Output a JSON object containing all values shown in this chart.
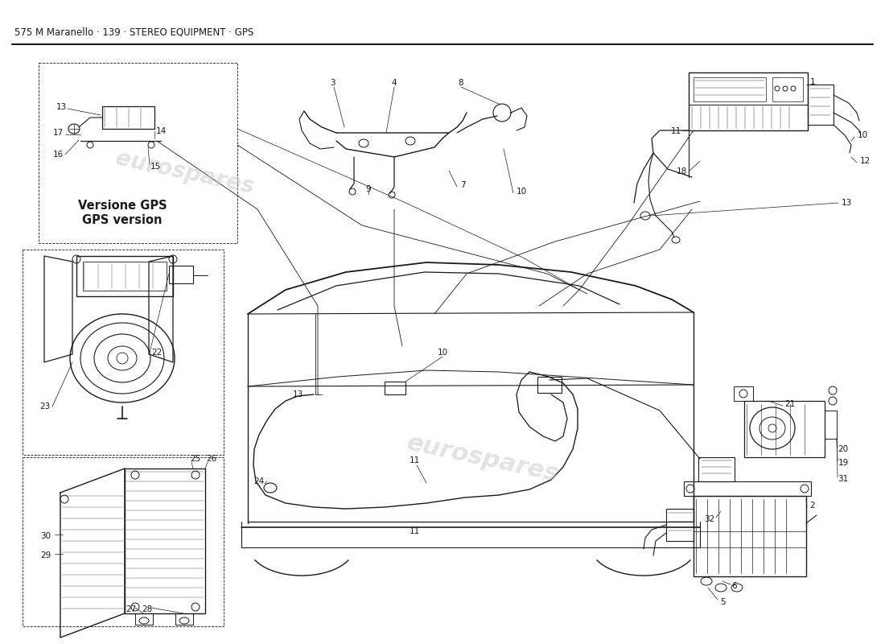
{
  "title": "575 M Maranello · 139 · STEREO EQUIPMENT · GPS",
  "bg": "#ffffff",
  "lc": "#1a1a1a",
  "wm_color": "#c8c8c8",
  "gps_line1": "Versione GPS",
  "gps_line2": "GPS version"
}
